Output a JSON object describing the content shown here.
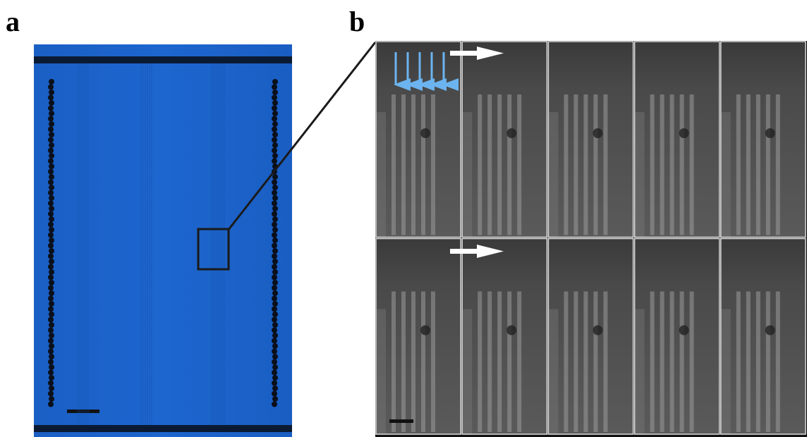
{
  "panels": [
    {
      "label": "a"
    },
    {
      "label": "b"
    }
  ]
}
